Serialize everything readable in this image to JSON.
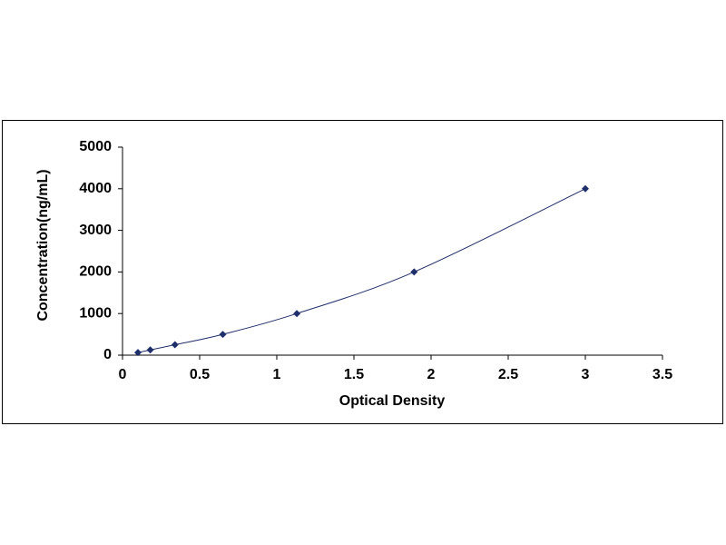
{
  "chart_data": {
    "type": "scatter",
    "x_label": "Optical Density",
    "y_label": "Concentration(ng/mL)",
    "x": [
      0.1,
      0.18,
      0.34,
      0.65,
      1.13,
      1.89,
      3.0
    ],
    "values": [
      62.5,
      125,
      250,
      500,
      1000,
      2000,
      4000
    ],
    "color": "#1f2f6b",
    "line": true,
    "marker": "diamond",
    "xlim": [
      0,
      3.5
    ],
    "xticks": [
      0,
      0.5,
      1,
      1.5,
      2,
      2.5,
      3,
      3.5
    ],
    "ylim": [
      0,
      5000
    ],
    "yticks": [
      0,
      1000,
      2000,
      3000,
      4000,
      5000
    ]
  }
}
